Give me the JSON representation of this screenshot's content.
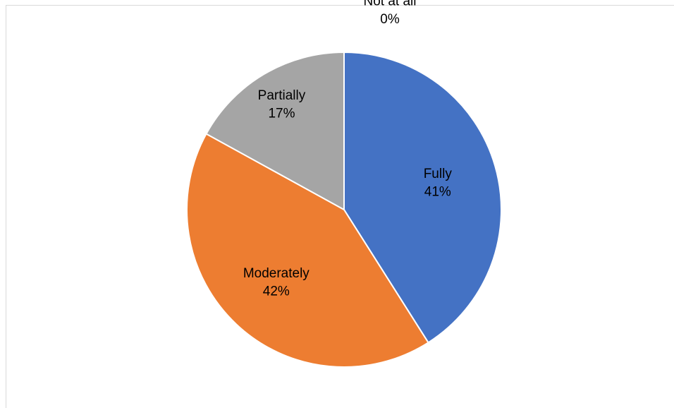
{
  "chart_data": {
    "type": "pie",
    "categories": [
      "Fully",
      "Moderately",
      "Partially",
      "Not at all"
    ],
    "values": [
      41,
      42,
      17,
      0
    ],
    "labels": [
      "41%",
      "42%",
      "17%",
      "0%"
    ],
    "colors": [
      "#4472C4",
      "#ED7D31",
      "#A5A5A5",
      "#FFC000"
    ],
    "label_colors": [
      "#000000",
      "#000000",
      "#000000",
      "#000000"
    ],
    "start_angle_deg": 0,
    "direction": "clockwise",
    "legend": "none"
  }
}
